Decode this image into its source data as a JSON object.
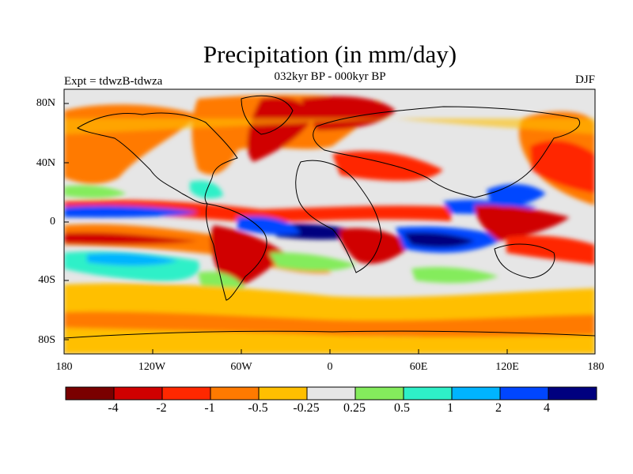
{
  "title": "Precipitation (in mm/day)",
  "subtitle": "032kyr BP - 000kyr BP",
  "left_label": "Expt = tdwzB-tdwza",
  "right_label": "DJF",
  "lat_labels": [
    "80N",
    "40N",
    "0",
    "40S",
    "80S"
  ],
  "lon_labels": [
    "180",
    "120W",
    "60W",
    "0",
    "60E",
    "120E",
    "180"
  ],
  "colorbar": {
    "colors": [
      "#7a0000",
      "#d00000",
      "#ff2800",
      "#ff7a00",
      "#ffbf00",
      "#e6e6e6",
      "#84ec5c",
      "#2ef0c8",
      "#00b4ff",
      "#0046ff",
      "#00007f"
    ],
    "labels": [
      "-4",
      "-2",
      "-1",
      "-0.5",
      "-0.25",
      "0.25",
      "0.5",
      "1",
      "2",
      "4"
    ]
  },
  "chart_data": {
    "type": "heatmap",
    "title": "Precipitation (in mm/day)",
    "subtitle": "032kyr BP - 000kyr BP",
    "experiment": "Expt = tdwzB-tdwza",
    "season": "DJF",
    "x_ticks": [
      "180",
      "120W",
      "60W",
      "0",
      "60E",
      "120E",
      "180"
    ],
    "y_ticks": [
      "80N",
      "40N",
      "0",
      "40S",
      "80S"
    ],
    "xlim": [
      -180,
      180
    ],
    "ylim": [
      -90,
      90
    ],
    "levels": [
      -4,
      -2,
      -1,
      -0.5,
      -0.25,
      0.25,
      0.5,
      1,
      2,
      4
    ]
  }
}
